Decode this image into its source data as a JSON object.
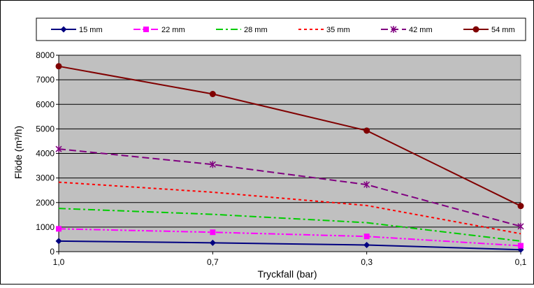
{
  "chart_data": {
    "type": "line",
    "title": "",
    "xlabel": "Tryckfall (bar)",
    "ylabel": "Flöde (m³/h)",
    "categories": [
      "1,0",
      "0,7",
      "0,3",
      "0,1"
    ],
    "ylim": [
      0,
      8000
    ],
    "yticks": [
      0,
      1000,
      2000,
      3000,
      4000,
      5000,
      6000,
      7000,
      8000
    ],
    "grid": true,
    "plot_background": "#c0c0c0",
    "legend_position": "top",
    "series": [
      {
        "name": "15 mm",
        "values": [
          430,
          360,
          270,
          80
        ],
        "color": "#000080",
        "dash": "solid",
        "marker": "diamond"
      },
      {
        "name": "22 mm",
        "values": [
          930,
          790,
          620,
          240
        ],
        "color": "#ff00ff",
        "dash": "dashdotdot",
        "marker": "square"
      },
      {
        "name": "28 mm",
        "values": [
          1760,
          1520,
          1180,
          430
        ],
        "color": "#00cc00",
        "dash": "dashdot",
        "marker": "none"
      },
      {
        "name": "35 mm",
        "values": [
          2830,
          2420,
          1880,
          730
        ],
        "color": "#ff0000",
        "dash": "dot",
        "marker": "none"
      },
      {
        "name": "42 mm",
        "values": [
          4180,
          3550,
          2730,
          1030
        ],
        "color": "#800080",
        "dash": "dash",
        "marker": "x"
      },
      {
        "name": "54 mm",
        "values": [
          7550,
          6420,
          4930,
          1860
        ],
        "color": "#800000",
        "dash": "solid",
        "marker": "circle"
      }
    ]
  }
}
